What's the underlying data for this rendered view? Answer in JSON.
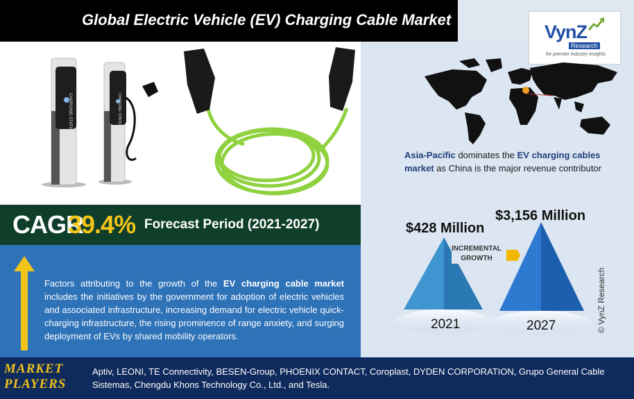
{
  "header": {
    "title": "Global Electric Vehicle (EV) Charging Cable Market"
  },
  "logo": {
    "brand": "VynZ",
    "sub": "Research",
    "tagline": "for premier industry insights"
  },
  "product_image": {
    "station_text": "CHARGING STATION"
  },
  "cagr": {
    "label": "CAGR",
    "value": "39.4%",
    "forecast": "Forecast Period (2021-2027)"
  },
  "factors": {
    "prefix": "Factors attributing to the growth of the ",
    "highlight": "EV charging cable market",
    "suffix": " includes the initiatives by the government for adoption of electric vehicles and associated infrastructure, increasing demand for electric vehicle quick-charging infrastructure, the rising prominence of range anxiety, and surging deployment of EVs by shared mobility operators."
  },
  "region": {
    "region_name": "Asia-Pacific",
    "text1": " dominates the ",
    "highlight": "EV charging cables market",
    "text2": " as China is the major revenue contributor"
  },
  "growth": {
    "incremental_line1": "INCREMENTAL",
    "incremental_line2": "GROWTH",
    "bars": [
      {
        "year": "2021",
        "value_label": "$428 Million",
        "value": 428
      },
      {
        "year": "2027",
        "value_label": "$3,156 Million",
        "value": 3156
      }
    ]
  },
  "copyright": "© VynZ Research",
  "players": {
    "title_line1": "MARKET",
    "title_line2": "PLAYERS",
    "list": "Aptiv, LEONI, TE Connectivity, BESEN-Group, PHOENIX CONTACT, Coroplast, DYDEN CORPORATION, Grupo General Cable Sistemas, Chengdu Khons Technology Co., Ltd., and Tesla."
  },
  "colors": {
    "accent_yellow": "#f2c318",
    "navy": "#0f2a5c",
    "dark_green": "#0f3f2b",
    "blue": "#2e72b8",
    "cable_green": "#8fd13f"
  }
}
